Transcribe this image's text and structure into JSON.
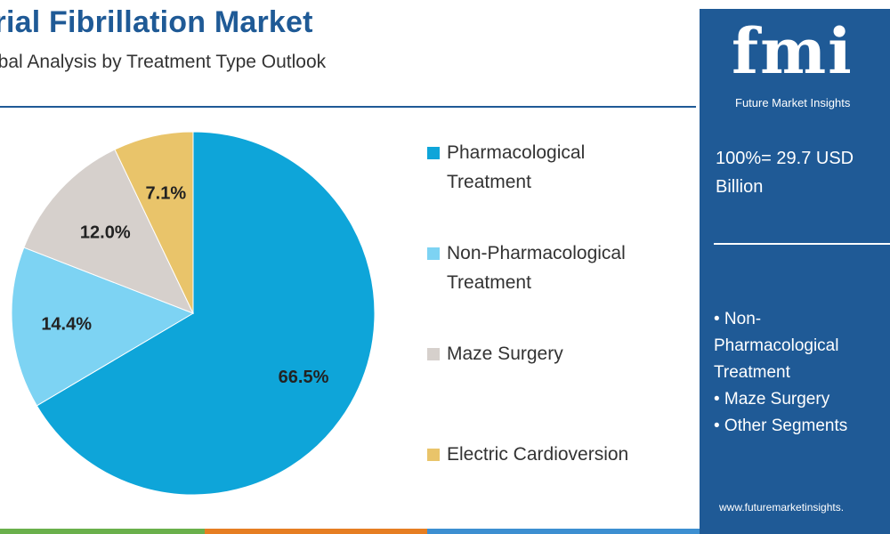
{
  "title": "trial Fibrillation Market",
  "subtitle": "obal Analysis by Treatment Type Outlook",
  "chart_data": {
    "type": "pie",
    "categories": [
      "Pharmacological Treatment",
      "Non-Pharmacological Treatment",
      "Maze Surgery",
      "Electric Cardioversion"
    ],
    "values": [
      66.5,
      14.4,
      12.0,
      7.1
    ],
    "labels": [
      "66.5%",
      "14.4%",
      "12.0%",
      "7.1%"
    ],
    "colors": [
      "#0ea5d9",
      "#7dd3f3",
      "#d6d0cc",
      "#e9c46a"
    ],
    "legend_position": "right"
  },
  "legend": [
    {
      "line1": "Pharmacological",
      "line2": "Treatment",
      "color": "#0ea5d9"
    },
    {
      "line1": "Non-Pharmacological",
      "line2": "Treatment",
      "color": "#7dd3f3"
    },
    {
      "line1": "Maze Surgery",
      "line2": "",
      "color": "#d6d0cc"
    },
    {
      "line1": "Electric Cardioversion",
      "line2": "",
      "color": "#e9c46a"
    }
  ],
  "panel": {
    "logo_text": "fmi",
    "logo_caption": "Future Market Insights",
    "total_line1": "100%= 29.7 USD",
    "total_line2": "Billion",
    "segments": [
      "• Non-",
      "Pharmacological",
      "Treatment",
      "• Maze Surgery",
      "• Other Segments"
    ],
    "website": "www.futuremarketinsights."
  },
  "colors": {
    "brand_blue": "#1f5a96",
    "bottom_bar": [
      "#6ab04c",
      "#e67e22",
      "#3d8fd1"
    ]
  }
}
